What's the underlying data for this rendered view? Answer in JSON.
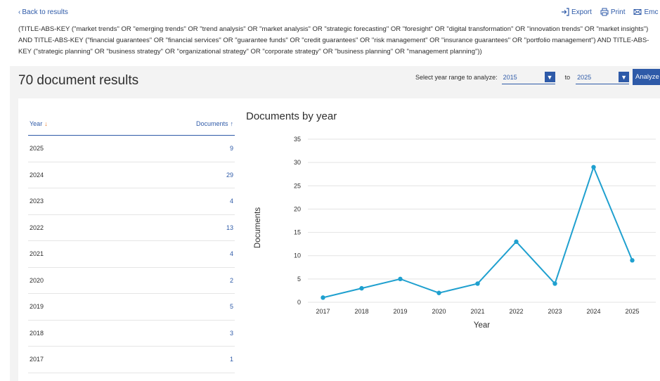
{
  "nav": {
    "back_label": "Back to results"
  },
  "actions": [
    {
      "label": "Export",
      "icon": "export-icon"
    },
    {
      "label": "Print",
      "icon": "printer-icon"
    },
    {
      "label": "Emc",
      "icon": "email-icon"
    }
  ],
  "query_text": "(TITLE-ABS-KEY (\"market trends\" OR \"emerging trends\" OR \"trend analysis\" OR \"market analysis\" OR \"strategic forecasting\" OR \"foresight\" OR \"digital transformation\" OR \"innovation trends\" OR \"market insights\") AND TITLE-ABS-KEY (\"financial guarantees\" OR \"financial services\" OR \"guarantee funds\" OR \"credit guarantees\" OR \"risk management\" OR \"insurance guarantees\" OR \"portfolio management\") AND TITLE-ABS-KEY (\"strategic planning\" OR \"business strategy\" OR \"organizational strategy\" OR \"corporate strategy\" OR \"business planning\" OR \"management planning\"))",
  "results": {
    "title": "70 document results"
  },
  "range": {
    "label": "Select year range to analyze:",
    "from": "2015",
    "to_label": "to",
    "to": "2025",
    "analyze_label": "Analyze"
  },
  "table": {
    "col_year": "Year",
    "col_docs": "Documents",
    "rows": [
      {
        "year": "2025",
        "count": "9"
      },
      {
        "year": "2024",
        "count": "29"
      },
      {
        "year": "2023",
        "count": "4"
      },
      {
        "year": "2022",
        "count": "13"
      },
      {
        "year": "2021",
        "count": "4"
      },
      {
        "year": "2020",
        "count": "2"
      },
      {
        "year": "2019",
        "count": "5"
      },
      {
        "year": "2018",
        "count": "3"
      },
      {
        "year": "2017",
        "count": "1"
      }
    ]
  },
  "colors": {
    "accent": "#2e5aa8",
    "line": "#1fa0cf",
    "sort_arrow": "#e87722"
  },
  "chart_data": {
    "type": "line",
    "title": "Documents by year",
    "xlabel": "Year",
    "ylabel": "Documents",
    "x": [
      "2017",
      "2018",
      "2019",
      "2020",
      "2021",
      "2022",
      "2023",
      "2024",
      "2025"
    ],
    "series": [
      {
        "values": [
          1,
          3,
          5,
          2,
          4,
          13,
          4,
          29,
          9
        ]
      }
    ],
    "ylim": [
      0,
      35
    ],
    "yticks": [
      "0",
      "5",
      "10",
      "15",
      "20",
      "25",
      "30",
      "35"
    ],
    "grid": true
  }
}
